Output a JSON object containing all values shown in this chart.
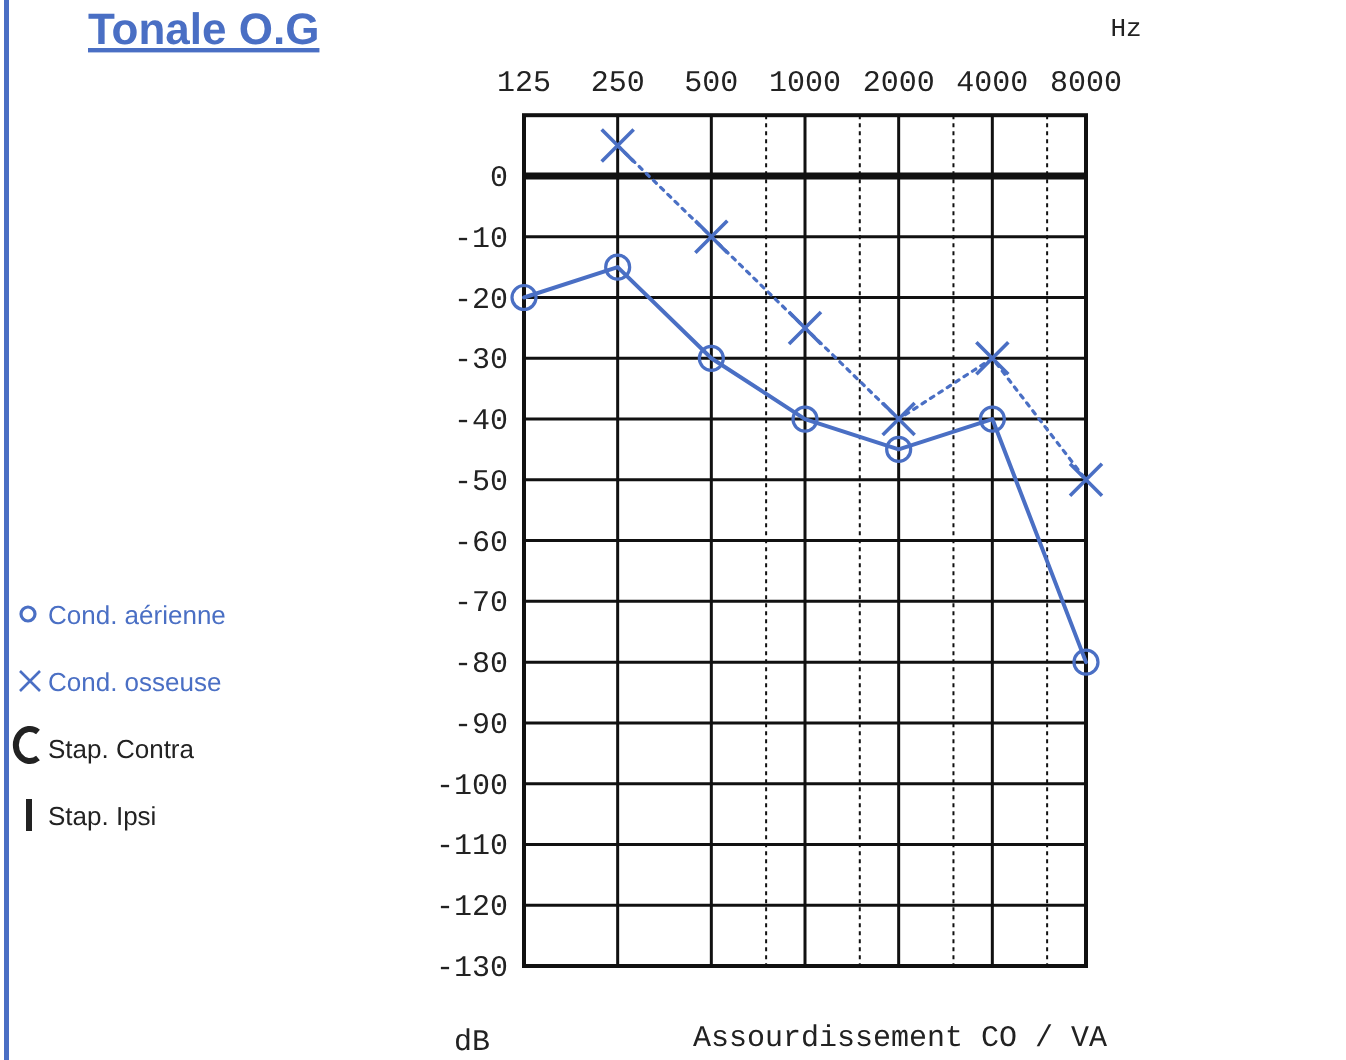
{
  "chart_data": {
    "type": "line",
    "title": "Tonale O.G",
    "xlabel": "Hz",
    "ylabel": "dB",
    "annotations": [
      "Assourdissement CO / VA"
    ],
    "x": [
      125,
      250,
      500,
      1000,
      2000,
      4000,
      8000
    ],
    "series": [
      {
        "name": "Cond. aérienne",
        "color": "#4a6fc4",
        "marker": "circle",
        "line_style": "solid",
        "values": [
          -20,
          -15,
          -30,
          -40,
          -45,
          -40,
          -80
        ]
      },
      {
        "name": "Cond. osseuse",
        "color": "#4a6fc4",
        "marker": "cross",
        "line_style": "dotted",
        "values": [
          null,
          5,
          -10,
          -25,
          -40,
          -30,
          -50
        ]
      },
      {
        "name": "Stap. Contra",
        "color": "#222222",
        "marker": "none",
        "values": [
          null,
          null,
          null,
          null,
          null,
          null,
          null
        ]
      },
      {
        "name": "Stap. Ipsi",
        "color": "#222222",
        "marker": "none",
        "values": [
          null,
          null,
          null,
          null,
          null,
          null,
          null
        ]
      }
    ],
    "log": "x",
    "xlim": [
      125,
      8000
    ],
    "xticks": [
      125,
      250,
      500,
      {
        "value": 750,
        "label": null
      },
      1000,
      {
        "value": 1500,
        "label": null
      },
      2000,
      {
        "value": 3000,
        "label": null
      },
      4000,
      {
        "value": 6000,
        "label": null
      },
      8000
    ],
    "ylim": [
      -130,
      10
    ],
    "yticks": [
      0,
      -10,
      -20,
      -30,
      -40,
      -50,
      -60,
      -70,
      -80,
      -90,
      -100,
      -110,
      -120,
      -130
    ],
    "ref_lines": [
      {
        "axis": "y",
        "value": 0
      }
    ],
    "grid": true,
    "legend": "left"
  }
}
